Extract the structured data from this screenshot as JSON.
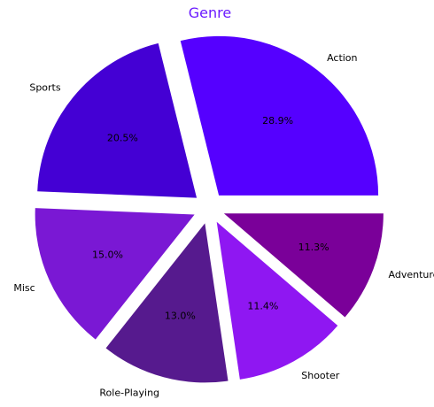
{
  "chart_data": {
    "type": "pie",
    "title": "Genre",
    "title_color": "#6a1aff",
    "categories": [
      "Action",
      "Sports",
      "Misc",
      "Role-Playing",
      "Shooter",
      "Adventure"
    ],
    "values": [
      28.9,
      20.5,
      15.0,
      13.0,
      11.4,
      11.3
    ],
    "value_labels": [
      "28.9%",
      "20.5%",
      "15.0%",
      "13.0%",
      "11.4%",
      "11.3%"
    ],
    "colors": [
      "#5500ff",
      "#4400d4",
      "#7a18d4",
      "#561a8e",
      "#8f17f2",
      "#7a0099"
    ],
    "start_angle_deg": 0,
    "direction": "counterclockwise",
    "exploded": true
  }
}
